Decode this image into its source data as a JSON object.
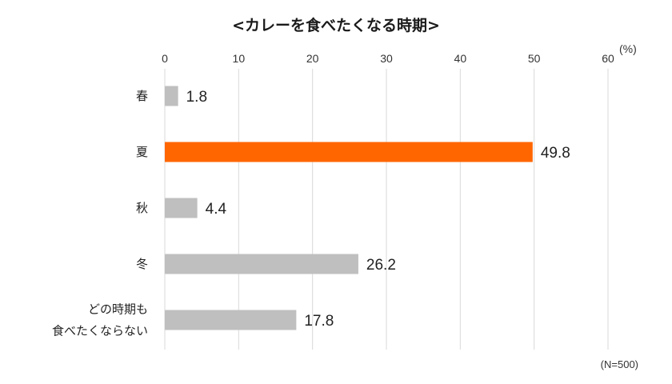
{
  "note": "(N=500)",
  "chart_data": {
    "type": "bar",
    "orientation": "horizontal",
    "title": "<カレーを食べたくなる時期>",
    "categories": [
      "春",
      "夏",
      "秋",
      "冬",
      "どの時期も食べたくならない"
    ],
    "category_display": [
      [
        "春"
      ],
      [
        "夏"
      ],
      [
        "秋"
      ],
      [
        "冬"
      ],
      [
        "どの時期も",
        "食べたくならない"
      ]
    ],
    "values": [
      1.8,
      49.8,
      4.4,
      26.2,
      17.8
    ],
    "data_labels": [
      "1.8",
      "49.8",
      "4.4",
      "26.2",
      "17.8"
    ],
    "highlight_index": 1,
    "x_ticks": [
      "0",
      "10",
      "20",
      "30",
      "40",
      "50",
      "60"
    ],
    "x_unit": "(%)",
    "xlim": [
      0,
      60
    ],
    "grid": true,
    "xaxis_position": "top",
    "colors": {
      "bar": "#bfbfbf",
      "highlight": "#ff6600",
      "grid": "#d9d9d9"
    }
  }
}
